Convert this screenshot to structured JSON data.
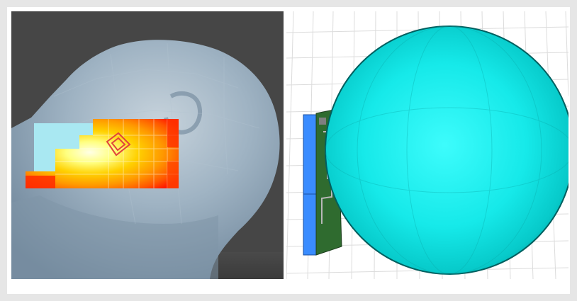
{
  "figure": {
    "panels": [
      {
        "id": "left",
        "background_color": "#464646",
        "head_color": "#8ea6b8",
        "heatmap_colors": [
          "#ff0000",
          "#ff5500",
          "#ff9900",
          "#ffd000",
          "#ffff80",
          "#ffffe0"
        ],
        "icon": "head-sar-heatmap"
      },
      {
        "id": "right",
        "grid_color": "#dcdcdc",
        "sphere_color": "#00e5e5",
        "device_colors": [
          "#3a78ff",
          "#2e6b2e",
          "#7f7f7f"
        ],
        "icon": "sphere-phantom-with-phone"
      }
    ]
  }
}
